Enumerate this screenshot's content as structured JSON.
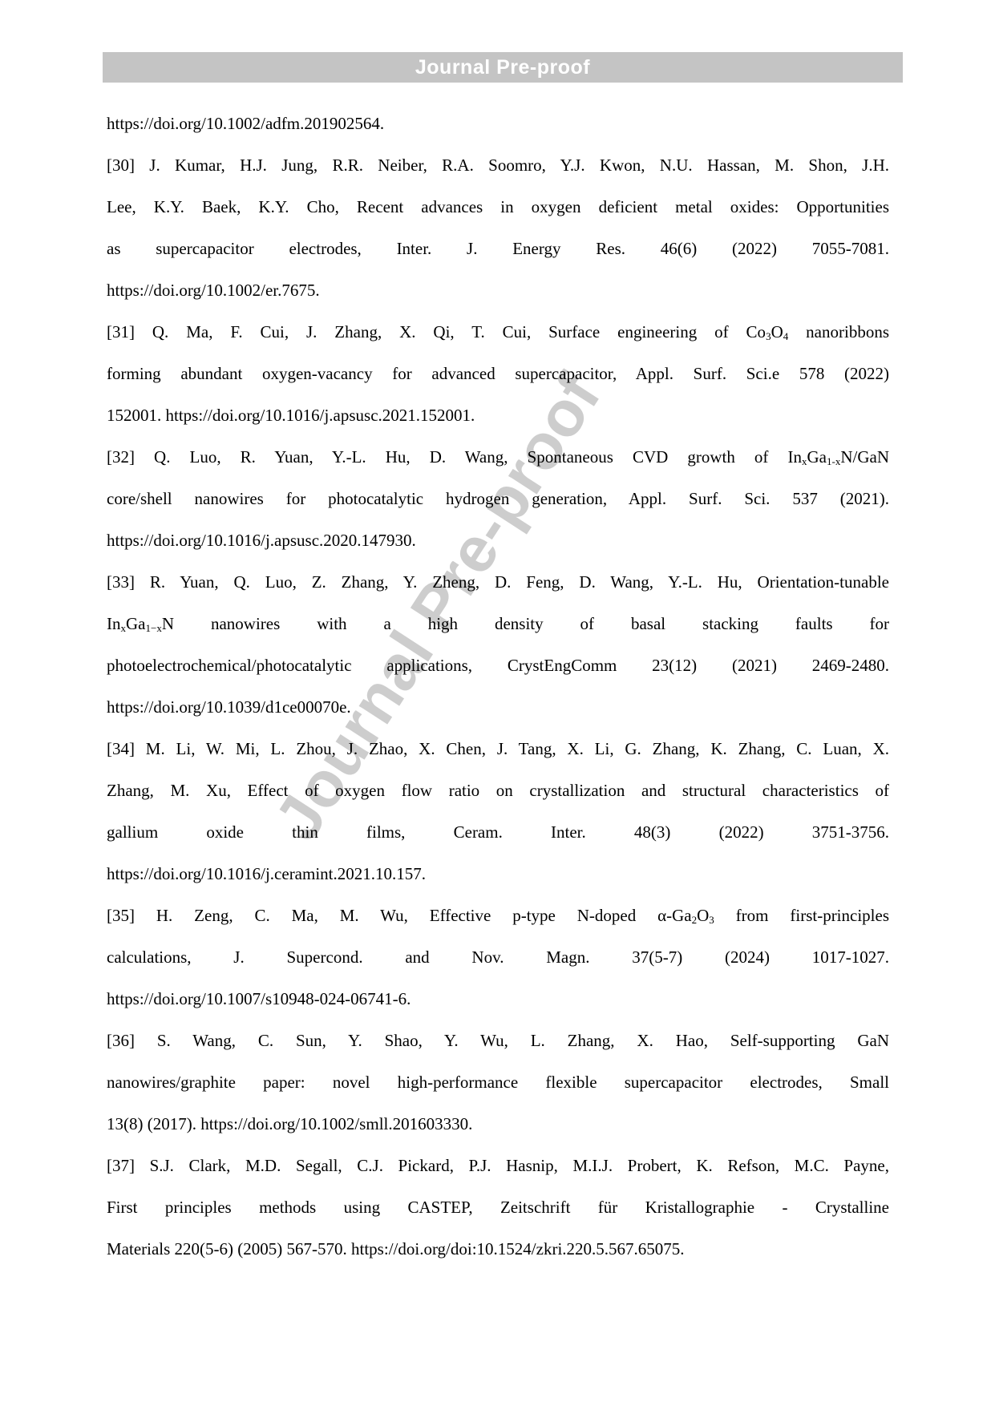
{
  "header": {
    "banner_label": "Journal Pre-proof"
  },
  "watermark": {
    "text": "Journal Pre-proof"
  },
  "document": {
    "references": [
      {
        "label": "continuation",
        "lines": [
          {
            "t": "https://doi.org/10.1002/adfm.201902564.",
            "j": false
          }
        ]
      },
      {
        "label": "[30]",
        "lines": [
          {
            "t": "[30] J. Kumar, H.J. Jung, R.R. Neiber, R.A. Soomro, Y.J. Kwon, N.U. Hassan, M. Shon, J.H.",
            "j": true
          },
          {
            "t": "Lee, K.Y. Baek, K.Y. Cho, Recent advances in oxygen deficient metal oxides: Opportunities",
            "j": true
          },
          {
            "t": "as supercapacitor electrodes, Inter. J. Energy Res. 46(6) (2022) 7055-7081.",
            "j": true
          },
          {
            "t": "https://doi.org/10.1002/er.7675.",
            "j": false
          }
        ]
      },
      {
        "label": "[31]",
        "lines": [
          {
            "t": "[31] Q. Ma, F. Cui, J. Zhang, X. Qi, T. Cui, Surface engineering of Co~3~O~4~ nanoribbons",
            "j": true
          },
          {
            "t": "forming abundant oxygen-vacancy for advanced supercapacitor, Appl. Surf. Sci.e 578 (2022)",
            "j": true
          },
          {
            "t": "152001. https://doi.org/10.1016/j.apsusc.2021.152001.",
            "j": false
          }
        ]
      },
      {
        "label": "[32]",
        "lines": [
          {
            "t": "[32] Q. Luo, R. Yuan, Y.-L. Hu, D. Wang, Spontaneous CVD growth of In~x~Ga~1-x~N/GaN",
            "j": true
          },
          {
            "t": "core/shell nanowires for photocatalytic hydrogen generation, Appl. Surf. Sci. 537 (2021).",
            "j": true
          },
          {
            "t": "https://doi.org/10.1016/j.apsusc.2020.147930.",
            "j": false
          }
        ]
      },
      {
        "label": "[33]",
        "lines": [
          {
            "t": "[33] R. Yuan, Q. Luo, Z. Zhang, Y. Zheng, D. Feng, D. Wang, Y.-L. Hu, Orientation-tunable",
            "j": true
          },
          {
            "t": "In~x~Ga~1−x~N nanowires with a high density of basal stacking faults for",
            "j": true
          },
          {
            "t": "photoelectrochemical/photocatalytic applications, CrystEngComm 23(12) (2021) 2469-2480.",
            "j": true
          },
          {
            "t": "https://doi.org/10.1039/d1ce00070e.",
            "j": false
          }
        ]
      },
      {
        "label": "[34]",
        "lines": [
          {
            "t": "[34] M. Li, W. Mi, L. Zhou, J. Zhao, X. Chen, J. Tang, X. Li, G. Zhang, K. Zhang, C. Luan, X.",
            "j": true
          },
          {
            "t": "Zhang, M. Xu, Effect of oxygen flow ratio on crystallization and structural characteristics of",
            "j": true
          },
          {
            "t": "gallium oxide thin films, Ceram. Inter. 48(3) (2022) 3751-3756.",
            "j": true
          },
          {
            "t": "https://doi.org/10.1016/j.ceramint.2021.10.157.",
            "j": false
          }
        ]
      },
      {
        "label": "[35]",
        "lines": [
          {
            "t": "[35] H. Zeng, C. Ma, M. Wu, Effective p-type N-doped α-Ga~2~O~3~ from first-principles",
            "j": true
          },
          {
            "t": "calculations, J. Supercond. and Nov. Magn. 37(5-7) (2024) 1017-1027.",
            "j": true
          },
          {
            "t": "https://doi.org/10.1007/s10948-024-06741-6.",
            "j": false
          }
        ]
      },
      {
        "label": "[36]",
        "lines": [
          {
            "t": "[36] S. Wang, C. Sun, Y. Shao, Y. Wu, L. Zhang, X. Hao, Self-supporting GaN",
            "j": true
          },
          {
            "t": "nanowires/graphite paper: novel high-performance flexible supercapacitor electrodes, Small",
            "j": true
          },
          {
            "t": "13(8) (2017). https://doi.org/10.1002/smll.201603330.",
            "j": false
          }
        ]
      },
      {
        "label": "[37]",
        "lines": [
          {
            "t": "[37] S.J. Clark, M.D. Segall, C.J. Pickard, P.J. Hasnip, M.I.J. Probert, K. Refson, M.C. Payne,",
            "j": true
          },
          {
            "t": "First principles methods using CASTEP, Zeitschrift für Kristallographie - Crystalline",
            "j": true
          },
          {
            "t": "Materials 220(5-6) (2005) 567-570. https://doi.org/doi:10.1524/zkri.220.5.567.65075.",
            "j": false
          }
        ]
      }
    ]
  }
}
